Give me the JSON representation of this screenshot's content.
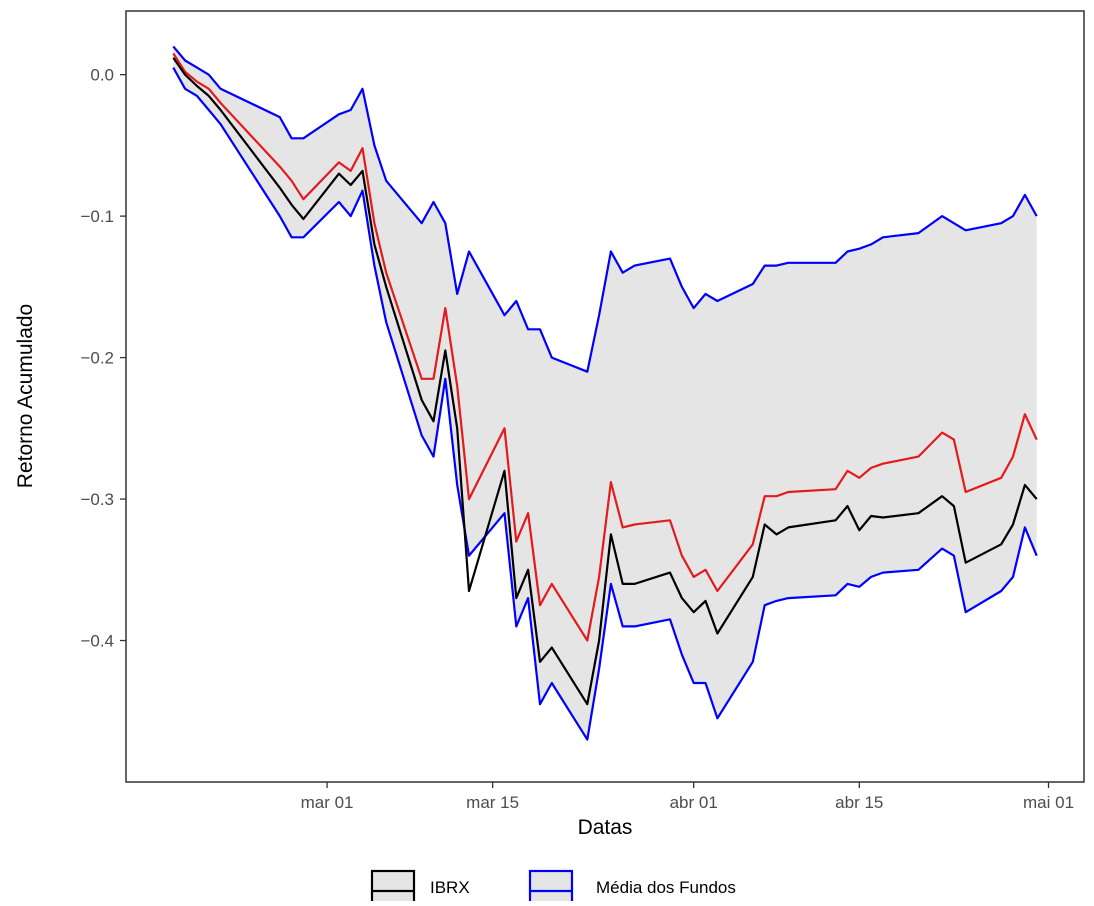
{
  "chart_data": {
    "type": "line",
    "xlabel": "Datas",
    "ylabel": "Retorno Acumulado",
    "x_axis": {
      "ticks": [
        {
          "label": "mar 01",
          "date": "2020-03-01"
        },
        {
          "label": "mar 15",
          "date": "2020-03-15"
        },
        {
          "label": "abr 01",
          "date": "2020-04-01"
        },
        {
          "label": "abr 15",
          "date": "2020-04-15"
        },
        {
          "label": "mai 01",
          "date": "2020-05-01"
        }
      ],
      "range": [
        "2020-02-13",
        "2020-05-04"
      ]
    },
    "y_axis": {
      "ticks": [
        0.0,
        -0.1,
        -0.2,
        -0.3,
        -0.4
      ],
      "tick_labels": [
        "0.0",
        "−0.1",
        "−0.2",
        "−0.3",
        "−0.4"
      ],
      "range": [
        -0.5,
        0.045
      ]
    },
    "grid": false,
    "legend": {
      "position": "bottom",
      "entries": [
        {
          "label": "IBRX",
          "color": "#000000"
        },
        {
          "label": "Média dos Fundos",
          "color": "#0000ff"
        }
      ]
    },
    "dates": [
      "2020-02-17",
      "2020-02-18",
      "2020-02-19",
      "2020-02-20",
      "2020-02-21",
      "2020-02-26",
      "2020-02-27",
      "2020-02-28",
      "2020-03-02",
      "2020-03-03",
      "2020-03-04",
      "2020-03-05",
      "2020-03-06",
      "2020-03-09",
      "2020-03-10",
      "2020-03-11",
      "2020-03-12",
      "2020-03-13",
      "2020-03-16",
      "2020-03-17",
      "2020-03-18",
      "2020-03-19",
      "2020-03-20",
      "2020-03-23",
      "2020-03-24",
      "2020-03-25",
      "2020-03-26",
      "2020-03-27",
      "2020-03-30",
      "2020-03-31",
      "2020-04-01",
      "2020-04-02",
      "2020-04-03",
      "2020-04-06",
      "2020-04-07",
      "2020-04-08",
      "2020-04-09",
      "2020-04-13",
      "2020-04-14",
      "2020-04-15",
      "2020-04-16",
      "2020-04-17",
      "2020-04-20",
      "2020-04-22",
      "2020-04-23",
      "2020-04-24",
      "2020-04-27",
      "2020-04-28",
      "2020-04-29",
      "2020-04-30"
    ],
    "series": [
      {
        "name": "IBRX",
        "color": "#000000",
        "values": [
          0.012,
          0.0,
          -0.008,
          -0.015,
          -0.025,
          -0.08,
          -0.092,
          -0.102,
          -0.07,
          -0.078,
          -0.068,
          -0.12,
          -0.15,
          -0.23,
          -0.245,
          -0.195,
          -0.25,
          -0.365,
          -0.28,
          -0.37,
          -0.35,
          -0.415,
          -0.405,
          -0.445,
          -0.4,
          -0.325,
          -0.36,
          -0.36,
          -0.352,
          -0.37,
          -0.38,
          -0.372,
          -0.395,
          -0.355,
          -0.318,
          -0.325,
          -0.32,
          -0.315,
          -0.305,
          -0.322,
          -0.312,
          -0.313,
          -0.31,
          -0.298,
          -0.305,
          -0.345,
          -0.332,
          -0.318,
          -0.29,
          -0.3
        ]
      },
      {
        "name": "",
        "color": "#e41a1c",
        "values": [
          0.015,
          0.002,
          -0.005,
          -0.01,
          -0.02,
          -0.065,
          -0.075,
          -0.088,
          -0.062,
          -0.068,
          -0.052,
          -0.105,
          -0.14,
          -0.215,
          -0.215,
          -0.165,
          -0.22,
          -0.3,
          -0.25,
          -0.33,
          -0.31,
          -0.375,
          -0.36,
          -0.4,
          -0.355,
          -0.288,
          -0.32,
          -0.318,
          -0.315,
          -0.34,
          -0.355,
          -0.35,
          -0.365,
          -0.332,
          -0.298,
          -0.298,
          -0.295,
          -0.293,
          -0.28,
          -0.285,
          -0.278,
          -0.275,
          -0.27,
          -0.253,
          -0.258,
          -0.295,
          -0.285,
          -0.27,
          -0.24,
          -0.258
        ]
      },
      {
        "name": "",
        "color": "#0000ff",
        "role": "upper",
        "values": [
          0.02,
          0.01,
          0.005,
          0.0,
          -0.01,
          -0.03,
          -0.045,
          -0.045,
          -0.028,
          -0.025,
          -0.01,
          -0.05,
          -0.075,
          -0.105,
          -0.09,
          -0.105,
          -0.155,
          -0.125,
          -0.17,
          -0.16,
          -0.18,
          -0.18,
          -0.2,
          -0.21,
          -0.17,
          -0.125,
          -0.14,
          -0.135,
          -0.13,
          -0.15,
          -0.165,
          -0.155,
          -0.16,
          -0.148,
          -0.135,
          -0.135,
          -0.133,
          -0.133,
          -0.125,
          -0.123,
          -0.12,
          -0.115,
          -0.112,
          -0.1,
          -0.105,
          -0.11,
          -0.105,
          -0.1,
          -0.085,
          -0.1
        ]
      },
      {
        "name": "",
        "color": "#0000ff",
        "role": "lower",
        "values": [
          0.005,
          -0.01,
          -0.015,
          -0.025,
          -0.035,
          -0.1,
          -0.115,
          -0.115,
          -0.09,
          -0.1,
          -0.082,
          -0.135,
          -0.175,
          -0.255,
          -0.27,
          -0.215,
          -0.29,
          -0.34,
          -0.31,
          -0.39,
          -0.37,
          -0.445,
          -0.43,
          -0.47,
          -0.42,
          -0.36,
          -0.39,
          -0.39,
          -0.385,
          -0.41,
          -0.43,
          -0.43,
          -0.455,
          -0.415,
          -0.375,
          -0.372,
          -0.37,
          -0.368,
          -0.36,
          -0.362,
          -0.355,
          -0.352,
          -0.35,
          -0.335,
          -0.34,
          -0.38,
          -0.365,
          -0.355,
          -0.32,
          -0.34
        ]
      }
    ],
    "band": {
      "between": [
        "upper",
        "lower"
      ],
      "fill": "#e5e5e5"
    }
  }
}
